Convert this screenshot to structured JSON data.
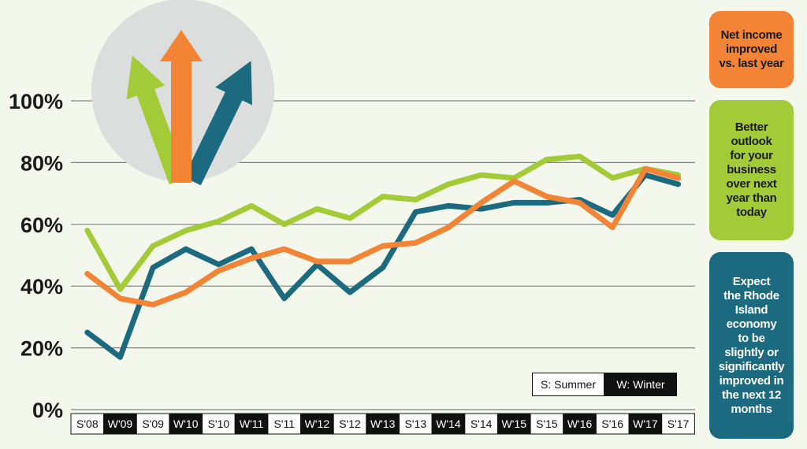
{
  "chart_data": {
    "type": "line",
    "categories": [
      "S'08",
      "W'09",
      "S'09",
      "W'10",
      "S'10",
      "W'11",
      "S'11",
      "W'12",
      "S'12",
      "W'13",
      "S'13",
      "W'14",
      "S'14",
      "W'15",
      "S'15",
      "W'16",
      "S'16",
      "W'17",
      "S'17"
    ],
    "y_tick_labels": [
      "0%",
      "20%",
      "40%",
      "60%",
      "80%",
      "100%"
    ],
    "ylim": [
      0,
      100
    ],
    "grid": true,
    "series": [
      {
        "name": "Better outlook for your business over next year than today",
        "color": "#a3cb38",
        "values": [
          58,
          39,
          53,
          58,
          61,
          66,
          60,
          65,
          62,
          69,
          68,
          73,
          76,
          75,
          81,
          82,
          75,
          78,
          76
        ]
      },
      {
        "name": "Expect the Rhode Island economy to be slightly or significantly improved in the next 12 months",
        "color": "#1c6a80",
        "values": [
          25,
          17,
          46,
          52,
          47,
          52,
          36,
          47,
          38,
          46,
          64,
          66,
          65,
          67,
          67,
          68,
          63,
          76,
          73
        ]
      },
      {
        "name": "Net income improved vs. last year",
        "color": "#f38436",
        "values": [
          44,
          36,
          34,
          38,
          45,
          49,
          52,
          48,
          48,
          53,
          54,
          59,
          67,
          74,
          69,
          67,
          59,
          78,
          75
        ]
      }
    ],
    "key": {
      "summer": "S: Summer",
      "winter": "W: Winter"
    }
  },
  "legend": {
    "orange": [
      "Net income",
      "improved",
      "vs. last year"
    ],
    "green": [
      "Better",
      "outlook",
      "for your",
      "business",
      "over next",
      "year than",
      "today"
    ],
    "blue": [
      "Expect",
      "the Rhode",
      "Island",
      "economy",
      "to be",
      "slightly or",
      "significantly",
      "improved in",
      "the next 12",
      "months"
    ]
  },
  "colors": {
    "background": "#f4f7eb",
    "orange": "#f38436",
    "green": "#a3cb38",
    "blue": "#1c6a80",
    "grid": "#7f7f7f",
    "axis_label_dark": "#111111"
  },
  "logo": {
    "icon": "three-upward-arrows-icon"
  }
}
